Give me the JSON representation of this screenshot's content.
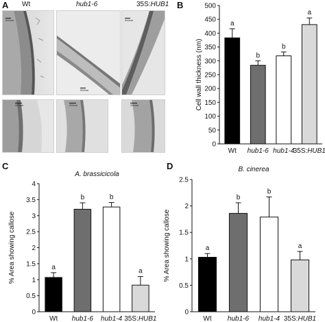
{
  "panel_A": {
    "letter": "A",
    "labels": {
      "wt": "Wt",
      "hub": "hub1-6",
      "oe_prefix": "35S:",
      "oe_gene": "HUB1"
    },
    "micrographs": [
      {
        "name": "micrograph-wt-top",
        "scale_text": "500nm"
      },
      {
        "name": "micrograph-hub1-6-top",
        "scale_text": "500nm"
      },
      {
        "name": "micrograph-35s-hub1-top",
        "scale_text": "500nm"
      },
      {
        "name": "micrograph-wt-bottom",
        "scale_text": "200nm"
      },
      {
        "name": "micrograph-hub1-6-bottom",
        "scale_text": "200nm"
      },
      {
        "name": "micrograph-35s-hub1-bottom",
        "scale_text": "200nm"
      }
    ]
  },
  "chart_data": [
    {
      "panel": "B",
      "type": "bar",
      "title": "",
      "ylabel": "Cell wall thickness (nm)",
      "ylim": [
        0,
        500
      ],
      "yticks": [
        0,
        50,
        100,
        150,
        200,
        250,
        300,
        350,
        400,
        450,
        500
      ],
      "categories": [
        {
          "prefix": "",
          "text": "Wt",
          "italic": false
        },
        {
          "prefix": "",
          "text": "hub1-6",
          "italic": true
        },
        {
          "prefix": "",
          "text": "hub1-4",
          "italic": true
        },
        {
          "prefix": "35S:",
          "text": "HUB1",
          "italic": true
        }
      ],
      "values": [
        383,
        284,
        318,
        431
      ],
      "errors": [
        33,
        16,
        14,
        24
      ],
      "sig": [
        "a",
        "b",
        "b",
        "a"
      ],
      "colors": [
        "#000000",
        "#6e6e6e",
        "#ffffff",
        "#d9d9d9"
      ]
    },
    {
      "panel": "C",
      "type": "bar",
      "title": "A. brassicicola",
      "ylabel": "% Area showing callose",
      "ylim": [
        0,
        4
      ],
      "yticks": [
        0,
        0.5,
        1,
        1.5,
        2,
        2.5,
        3,
        3.5,
        4
      ],
      "categories": [
        {
          "prefix": "",
          "text": "Wt",
          "italic": false
        },
        {
          "prefix": "",
          "text": "hub1-6",
          "italic": true
        },
        {
          "prefix": "",
          "text": "hub1-4",
          "italic": true
        },
        {
          "prefix": "35S:",
          "text": "HUB1",
          "italic": true
        }
      ],
      "values": [
        1.07,
        3.2,
        3.27,
        0.83
      ],
      "errors": [
        0.15,
        0.2,
        0.14,
        0.27
      ],
      "sig": [
        "a",
        "b",
        "b",
        "a"
      ],
      "colors": [
        "#000000",
        "#6e6e6e",
        "#ffffff",
        "#d9d9d9"
      ]
    },
    {
      "panel": "D",
      "type": "bar",
      "title": "B. cinerea",
      "ylabel": "% Area showing callose",
      "ylim": [
        0,
        2.5
      ],
      "yticks": [
        0,
        0.5,
        1,
        1.5,
        2,
        2.5
      ],
      "categories": [
        {
          "prefix": "",
          "text": "Wt",
          "italic": false
        },
        {
          "prefix": "",
          "text": "hub1-6",
          "italic": true
        },
        {
          "prefix": "",
          "text": "hub1-4",
          "italic": true
        },
        {
          "prefix": "35S:",
          "text": "HUB1",
          "italic": true
        }
      ],
      "values": [
        1.03,
        1.86,
        1.79,
        0.98
      ],
      "errors": [
        0.07,
        0.2,
        0.38,
        0.16
      ],
      "sig": [
        "a",
        "b",
        "b",
        "a"
      ],
      "colors": [
        "#000000",
        "#6e6e6e",
        "#ffffff",
        "#d9d9d9"
      ]
    }
  ]
}
